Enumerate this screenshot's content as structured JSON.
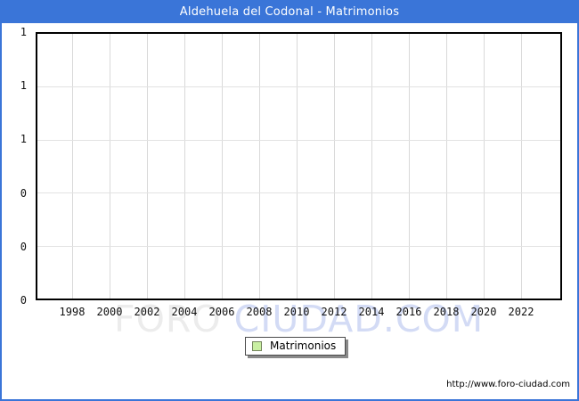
{
  "window": {
    "title": "Aldehuela del Codonal - Matrimonios"
  },
  "chart_data": {
    "type": "bar",
    "title": "Aldehuela del Codonal - Matrimonios",
    "categories": [
      "1998",
      "2000",
      "2002",
      "2004",
      "2006",
      "2008",
      "2010",
      "2012",
      "2014",
      "2016",
      "2018",
      "2020",
      "2022"
    ],
    "series": [
      {
        "name": "Matrimonios",
        "values": [
          0,
          0,
          0,
          0,
          0,
          0,
          0,
          0,
          0,
          0,
          0,
          0,
          0
        ]
      }
    ],
    "xlabel": "",
    "ylabel": "",
    "ylim": [
      0,
      1
    ],
    "y_tick_labels_top_to_bottom": [
      "1",
      "1",
      "1",
      "0",
      "0",
      "0"
    ],
    "grid": true,
    "legend_position": "bottom-center",
    "bar_color": "#c9f0a2"
  },
  "legend": {
    "items": [
      {
        "label": "Matrimonios",
        "swatch_color": "#c9f0a2"
      }
    ]
  },
  "watermark": {
    "part1": "FORO ",
    "part2": "CIUDAD.COM"
  },
  "footer": {
    "url": "http://www.foro-ciudad.com"
  },
  "colors": {
    "titlebar": "#3a75d8",
    "frame_border": "#3a75d8",
    "plot_border": "#000000",
    "gridline": "#d9d9d9",
    "legend_swatch": "#c9f0a2"
  }
}
